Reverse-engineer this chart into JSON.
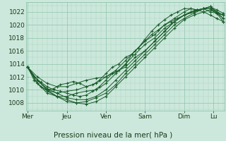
{
  "background_color": "#cce8dc",
  "plot_bg_color": "#cce8dc",
  "grid_major_color": "#8ec4aa",
  "grid_minor_color": "#aad4be",
  "line_color": "#1a5c2a",
  "title": "Pression niveau de la mer( hPa )",
  "ylabel_ticks": [
    1008,
    1010,
    1012,
    1014,
    1016,
    1018,
    1020,
    1022
  ],
  "ylim": [
    1006.8,
    1023.5
  ],
  "x_day_labels": [
    "Mer",
    "Jeu",
    "Ven",
    "Sam",
    "Dim",
    "Lu"
  ],
  "x_day_positions": [
    0,
    24,
    48,
    72,
    96,
    114
  ],
  "xlim": [
    -1,
    121
  ],
  "series": [
    [
      0,
      1013.5,
      4,
      1011.5,
      8,
      1010.5,
      12,
      1010.0,
      16,
      1010.2,
      20,
      1010.8,
      24,
      1011.0,
      28,
      1011.3,
      32,
      1011.0,
      36,
      1010.5,
      40,
      1010.8,
      44,
      1011.5,
      48,
      1012.5,
      52,
      1013.5,
      56,
      1014.0,
      60,
      1015.0,
      64,
      1015.5,
      68,
      1016.5,
      72,
      1017.5,
      76,
      1018.5,
      80,
      1019.2,
      84,
      1020.0,
      88,
      1020.5,
      92,
      1021.0,
      96,
      1021.5,
      100,
      1022.0,
      104,
      1022.3,
      108,
      1022.5,
      112,
      1022.0,
      116,
      1021.8,
      120,
      1021.5
    ],
    [
      0,
      1013.5,
      6,
      1011.0,
      12,
      1009.5,
      18,
      1009.0,
      24,
      1009.0,
      30,
      1009.5,
      36,
      1009.8,
      42,
      1010.0,
      48,
      1011.0,
      54,
      1012.5,
      60,
      1014.0,
      66,
      1015.5,
      72,
      1017.0,
      78,
      1018.0,
      84,
      1019.5,
      90,
      1020.5,
      96,
      1021.5,
      102,
      1022.2,
      108,
      1022.5,
      112,
      1022.8,
      116,
      1022.0,
      120,
      1021.5
    ],
    [
      0,
      1013.5,
      6,
      1011.5,
      12,
      1010.0,
      18,
      1009.5,
      24,
      1009.8,
      30,
      1010.0,
      36,
      1010.5,
      42,
      1011.0,
      48,
      1012.0,
      54,
      1013.0,
      60,
      1014.5,
      66,
      1016.0,
      72,
      1017.5,
      78,
      1018.5,
      84,
      1020.0,
      90,
      1021.0,
      96,
      1022.0,
      100,
      1022.5,
      104,
      1022.3,
      108,
      1022.5,
      112,
      1022.8,
      116,
      1022.0,
      120,
      1021.0
    ],
    [
      0,
      1013.5,
      6,
      1012.0,
      12,
      1011.0,
      18,
      1010.5,
      24,
      1010.5,
      30,
      1011.0,
      36,
      1011.5,
      42,
      1011.8,
      48,
      1012.0,
      54,
      1012.8,
      60,
      1013.5,
      66,
      1015.0,
      72,
      1016.0,
      78,
      1017.5,
      84,
      1019.0,
      90,
      1020.5,
      96,
      1021.5,
      102,
      1022.0,
      108,
      1022.5,
      112,
      1022.5,
      116,
      1022.0,
      120,
      1021.5
    ],
    [
      0,
      1013.5,
      6,
      1011.5,
      12,
      1010.2,
      18,
      1009.5,
      24,
      1008.8,
      30,
      1008.5,
      36,
      1008.5,
      42,
      1009.0,
      48,
      1010.0,
      54,
      1011.5,
      60,
      1013.0,
      66,
      1014.5,
      72,
      1016.0,
      78,
      1017.5,
      84,
      1019.0,
      90,
      1020.5,
      96,
      1021.5,
      102,
      1022.0,
      108,
      1022.5,
      112,
      1022.8,
      116,
      1022.3,
      120,
      1021.8
    ],
    [
      0,
      1013.5,
      6,
      1011.5,
      12,
      1010.0,
      18,
      1009.0,
      24,
      1008.2,
      30,
      1008.0,
      36,
      1008.2,
      42,
      1008.8,
      48,
      1009.5,
      54,
      1010.8,
      60,
      1012.5,
      66,
      1014.0,
      72,
      1015.5,
      78,
      1017.0,
      84,
      1018.5,
      90,
      1020.0,
      96,
      1021.0,
      102,
      1021.8,
      108,
      1022.5,
      112,
      1022.5,
      116,
      1021.8,
      120,
      1021.0
    ],
    [
      0,
      1013.5,
      6,
      1011.0,
      12,
      1009.8,
      18,
      1009.0,
      24,
      1008.5,
      30,
      1008.0,
      36,
      1007.8,
      42,
      1008.2,
      48,
      1009.0,
      54,
      1010.5,
      60,
      1012.0,
      66,
      1013.5,
      72,
      1015.0,
      78,
      1016.5,
      84,
      1018.0,
      90,
      1019.5,
      96,
      1020.8,
      102,
      1021.5,
      108,
      1022.0,
      112,
      1022.3,
      116,
      1021.8,
      120,
      1020.5
    ],
    [
      0,
      1013.5,
      4,
      1012.0,
      8,
      1011.2,
      12,
      1010.5,
      16,
      1010.0,
      20,
      1009.8,
      24,
      1009.5,
      28,
      1009.2,
      32,
      1009.0,
      36,
      1009.2,
      40,
      1009.8,
      44,
      1010.5,
      48,
      1011.5,
      52,
      1012.5,
      56,
      1013.0,
      60,
      1013.8,
      64,
      1015.5,
      68,
      1016.5,
      72,
      1017.8,
      76,
      1019.0,
      80,
      1020.0,
      84,
      1020.8,
      88,
      1021.5,
      92,
      1022.0,
      96,
      1022.5,
      100,
      1022.5,
      104,
      1022.3,
      108,
      1022.0,
      112,
      1021.5,
      116,
      1021.0,
      120,
      1020.5
    ]
  ],
  "marker": "+",
  "marker_size": 3,
  "linewidth": 0.7
}
